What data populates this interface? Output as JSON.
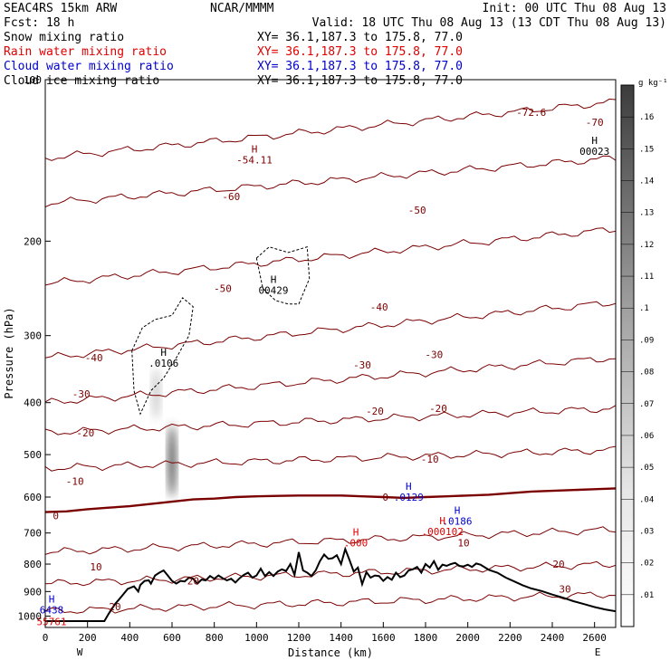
{
  "header": {
    "model": "SEAC4RS 15km ARW",
    "forecast": "Fcst:    18 h",
    "center": "NCAR/MMMM",
    "init": "Init: 00 UTC Thu 08 Aug 13",
    "valid": "Valid: 18 UTC Thu 08 Aug 13 (13 CDT Thu 08 Aug 13)"
  },
  "legend": [
    {
      "name": "Snow mixing ratio",
      "xy": "XY=  36.1,187.3 to 175.8, 77.0",
      "color": "#000000"
    },
    {
      "name": "Rain water mixing ratio",
      "xy": "XY=  36.1,187.3 to 175.8, 77.0",
      "color": "#e00000"
    },
    {
      "name": "Cloud water mixing ratio",
      "xy": "XY=  36.1,187.3 to 175.8, 77.0",
      "color": "#0000cc"
    },
    {
      "name": "Cloud ice mixing ratio",
      "xy": "XY=  36.1,187.3 to 175.8, 77.0",
      "color": "#000000"
    }
  ],
  "chart_data": {
    "type": "cross-section",
    "xlabel": "Distance (km)",
    "ylabel": "Pressure (hPa)",
    "xlim": [
      0,
      2700
    ],
    "ylim": [
      1050,
      100
    ],
    "y_scale": "log",
    "x_ticks": [
      0,
      200,
      400,
      600,
      800,
      1000,
      1200,
      1400,
      1600,
      1800,
      2000,
      2200,
      2400,
      2600
    ],
    "y_ticks": [
      200,
      300,
      400,
      500,
      600,
      700,
      800,
      900,
      1000
    ],
    "y_top_label": "100",
    "end_labels": {
      "west": "W",
      "east": "E"
    },
    "colorbar": {
      "units": "g kg⁻¹",
      "levels": [
        0.01,
        0.02,
        0.03,
        0.04,
        0.05,
        0.06,
        0.07,
        0.08,
        0.09,
        0.1,
        0.11,
        0.12,
        0.13,
        0.14,
        0.15,
        0.16
      ],
      "labels": [
        ".01",
        ".02",
        ".03",
        ".04",
        ".05",
        ".06",
        ".07",
        ".08",
        ".09",
        ".1",
        ".11",
        ".12",
        ".13",
        ".14",
        ".15",
        ".16"
      ]
    },
    "terrain": {
      "distance": [
        0,
        120,
        200,
        280,
        300,
        330,
        350,
        370,
        390,
        420,
        440,
        450,
        470,
        490,
        500,
        520,
        540,
        560,
        580,
        600,
        620,
        640,
        660,
        680,
        700,
        720,
        740,
        760,
        780,
        800,
        820,
        840,
        860,
        880,
        900,
        920,
        940,
        960,
        980,
        1000,
        1020,
        1040,
        1060,
        1080,
        1100,
        1120,
        1140,
        1160,
        1180,
        1200,
        1220,
        1240,
        1260,
        1280,
        1300,
        1320,
        1340,
        1360,
        1380,
        1400,
        1420,
        1440,
        1460,
        1480,
        1500,
        1520,
        1540,
        1560,
        1580,
        1600,
        1620,
        1640,
        1660,
        1680,
        1700,
        1720,
        1740,
        1760,
        1780,
        1800,
        1820,
        1840,
        1860,
        1880,
        1900,
        1920,
        1940,
        1960,
        1980,
        2000,
        2020,
        2040,
        2060,
        2100,
        2140,
        2180,
        2220,
        2260,
        2300,
        2350,
        2400,
        2450,
        2500,
        2550,
        2600,
        2650,
        2700
      ],
      "pressure": [
        1022,
        1022,
        1022,
        1022,
        990,
        950,
        930,
        910,
        890,
        880,
        900,
        875,
        860,
        858,
        870,
        840,
        830,
        822,
        840,
        860,
        870,
        860,
        862,
        848,
        852,
        870,
        855,
        858,
        842,
        852,
        840,
        850,
        858,
        852,
        866,
        850,
        838,
        830,
        848,
        840,
        816,
        842,
        828,
        842,
        826,
        818,
        824,
        800,
        838,
        760,
        822,
        830,
        842,
        822,
        790,
        768,
        782,
        780,
        770,
        800,
        750,
        786,
        826,
        812,
        872,
        828,
        848,
        840,
        842,
        860,
        846,
        856,
        830,
        846,
        840,
        822,
        818,
        810,
        830,
        800,
        812,
        790,
        820,
        802,
        806,
        800,
        796,
        806,
        808,
        802,
        810,
        798,
        802,
        820,
        830,
        848,
        862,
        876,
        888,
        898,
        912,
        924,
        938,
        950,
        962,
        972,
        980
      ]
    },
    "temperature_isotherms": {
      "units": "°C",
      "levels": [
        -70,
        -60,
        -50,
        -40,
        -30,
        -20,
        -10,
        0,
        10,
        20,
        30
      ],
      "level_pressure_at_west": [
        140,
        170,
        240,
        330,
        400,
        455,
        530,
        640,
        760,
        870,
        980
      ],
      "level_pressure_at_east": [
        110,
        140,
        190,
        260,
        330,
        410,
        490,
        580,
        690,
        800,
        910
      ],
      "freezing_line": {
        "distance": [
          0,
          100,
          200,
          300,
          400,
          500,
          600,
          700,
          800,
          900,
          1000,
          1100,
          1200,
          1300,
          1400,
          1500,
          1600,
          1700,
          1800,
          1900,
          2000,
          2100,
          2200,
          2300,
          2400,
          2500,
          2600,
          2700
        ],
        "pressure": [
          640,
          638,
          632,
          628,
          624,
          618,
          612,
          606,
          604,
          600,
          598,
          597,
          596,
          596,
          596,
          598,
          600,
          602,
          600,
          598,
          596,
          594,
          590,
          586,
          584,
          582,
          580,
          578
        ]
      }
    },
    "contour_labels": [
      {
        "text": "-72.6",
        "x": 2300,
        "y": 115
      },
      {
        "text": "-70",
        "x": 2600,
        "y": 120
      },
      {
        "text": "-60",
        "x": 880,
        "y": 165
      },
      {
        "text": "-50",
        "x": 1760,
        "y": 175
      },
      {
        "text": "-50",
        "x": 840,
        "y": 245
      },
      {
        "text": "-40",
        "x": 1580,
        "y": 265
      },
      {
        "text": "-40",
        "x": 230,
        "y": 330
      },
      {
        "text": "-30",
        "x": 1500,
        "y": 340
      },
      {
        "text": "-30",
        "x": 1840,
        "y": 325
      },
      {
        "text": "-30",
        "x": 170,
        "y": 385
      },
      {
        "text": "-20",
        "x": 1560,
        "y": 415
      },
      {
        "text": "-20",
        "x": 1860,
        "y": 410
      },
      {
        "text": "-20",
        "x": 190,
        "y": 455
      },
      {
        "text": "-10",
        "x": 1820,
        "y": 510
      },
      {
        "text": "-10",
        "x": 140,
        "y": 560
      },
      {
        "text": "0",
        "x": 1610,
        "y": 600
      },
      {
        "text": "0",
        "x": 50,
        "y": 650
      },
      {
        "text": "10",
        "x": 1980,
        "y": 730
      },
      {
        "text": "10",
        "x": 240,
        "y": 810
      },
      {
        "text": "20",
        "x": 2430,
        "y": 800
      },
      {
        "text": "20",
        "x": 700,
        "y": 860
      },
      {
        "text": "20",
        "x": 330,
        "y": 960
      },
      {
        "text": "30",
        "x": 2460,
        "y": 890
      }
    ],
    "maxima": [
      {
        "label": "H",
        "value": "-54.11",
        "x": 990,
        "y": 140,
        "color": "#800000"
      },
      {
        "label": "H",
        "value": "00023",
        "x": 2600,
        "y": 135,
        "color": "#000000"
      },
      {
        "label": "H",
        "value": "00429",
        "x": 1080,
        "y": 245,
        "color": "#000000"
      },
      {
        "label": "H",
        "value": ".0106",
        "x": 560,
        "y": 335,
        "color": "#000000"
      },
      {
        "label": "H",
        "value": ".0129",
        "x": 1720,
        "y": 595,
        "color": "#0000cc"
      },
      {
        "label": "H",
        "value": ".0186",
        "x": 1950,
        "y": 660,
        "color": "#0000cc"
      },
      {
        "label": "H",
        "value": ".000102",
        "x": 1880,
        "y": 690,
        "color": "#e00000"
      },
      {
        "label": "H",
        "value": ".000",
        "x": 1470,
        "y": 725,
        "color": "#e00000"
      },
      {
        "label": "H",
        "value": "6438",
        "x": 30,
        "y": 965,
        "color": "#0000cc"
      },
      {
        "label": "",
        "value": "55761",
        "x": 30,
        "y": 1015,
        "color": "#e00000"
      }
    ],
    "snow_shading": [
      {
        "x": 600,
        "p_top": 440,
        "p_bottom": 600,
        "max": 0.16,
        "x_halfwidth": 35
      },
      {
        "x": 525,
        "p_top": 345,
        "p_bottom": 430,
        "max": 0.05,
        "x_halfwidth": 35
      }
    ],
    "ice_contours": [
      {
        "x": [
          410,
          460,
          520,
          600,
          650,
          700,
          680,
          620,
          560,
          500,
          450,
          420,
          410
        ],
        "y": [
          320,
          290,
          280,
          275,
          255,
          265,
          300,
          330,
          360,
          380,
          420,
          380,
          320
        ]
      },
      {
        "x": [
          1000,
          1060,
          1150,
          1240,
          1250,
          1200,
          1150,
          1090,
          1030,
          1000
        ],
        "y": [
          215,
          205,
          210,
          205,
          235,
          262,
          262,
          258,
          245,
          215
        ]
      }
    ]
  }
}
